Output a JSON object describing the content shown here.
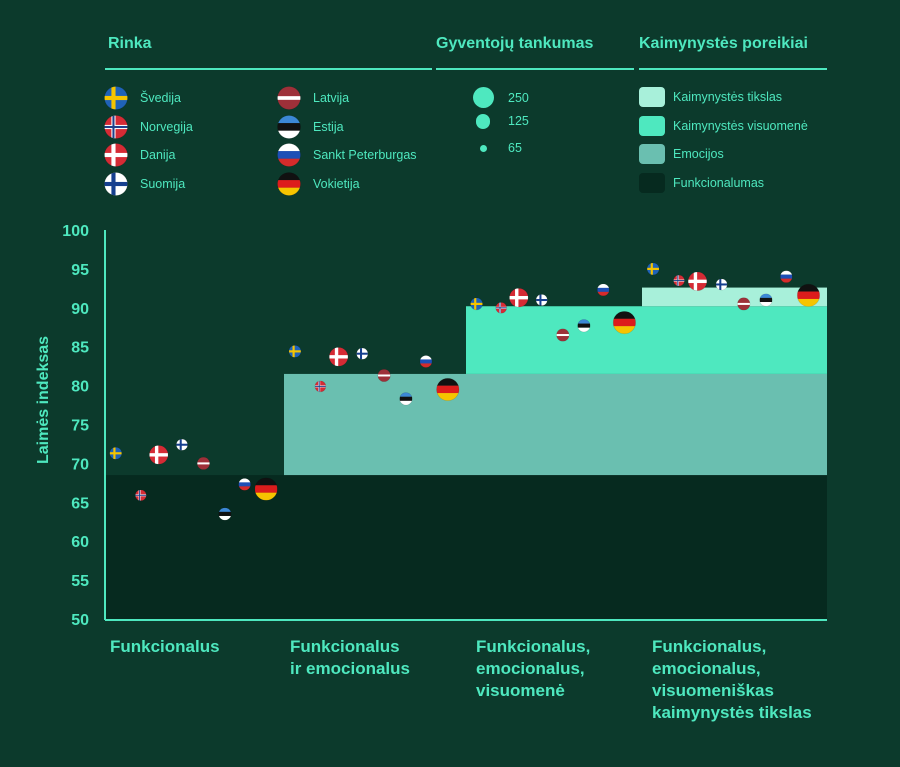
{
  "legend": {
    "market_title": "Rinka",
    "density_title": "Gyventojų tankumas",
    "needs_title": "Kaimynystės poreikiai",
    "markets": [
      {
        "key": "SE",
        "label": "Švedija"
      },
      {
        "key": "NO",
        "label": "Norvegija"
      },
      {
        "key": "DK",
        "label": "Danija"
      },
      {
        "key": "FI",
        "label": "Suomija"
      },
      {
        "key": "LV",
        "label": "Latvija"
      },
      {
        "key": "EE",
        "label": "Estija"
      },
      {
        "key": "RU",
        "label": "Sankt Peterburgas"
      },
      {
        "key": "DE",
        "label": "Vokietija"
      }
    ],
    "density": [
      {
        "value": "250",
        "size": 250
      },
      {
        "value": "125",
        "size": 125
      },
      {
        "value": "65",
        "size": 65
      }
    ],
    "needs": [
      {
        "label": "Kaimynystės tikslas",
        "color": "#a8f0da"
      },
      {
        "label": "Kaimynystės visuomenė",
        "color": "#4ee8bf"
      },
      {
        "label": "Emocijos",
        "color": "#6abfb0"
      },
      {
        "label": "Funkcionalumas",
        "color": "#062a1f"
      }
    ]
  },
  "colors": {
    "accent": "#4ee8bf",
    "background": "#0c3a2c"
  },
  "chart_data": {
    "type": "scatter",
    "ylabel": "Laimės indeksas",
    "xlabel": "",
    "ylim": [
      50,
      100
    ],
    "yticks": [
      50,
      55,
      60,
      65,
      70,
      75,
      80,
      85,
      90,
      95,
      100
    ],
    "categories": [
      "Funkcionalus",
      "Funkcionalus\nir emocionalus",
      "Funkcionalus,\nemocionalus,\nvisuomenė",
      "Funkcionalus,\nemocionalus,\nvisuomeniškas\nkaimynystės tikslas"
    ],
    "levels": [
      {
        "category": 0,
        "functional": 68.5
      },
      {
        "category": 1,
        "functional": 68.5,
        "emotions": 81.5
      },
      {
        "category": 2,
        "functional": 68.5,
        "emotions": 81.5,
        "society": 90.2
      },
      {
        "category": 3,
        "functional": 68.5,
        "emotions": 81.5,
        "society": 90.2,
        "purpose": 92.6
      }
    ],
    "points": [
      {
        "category": 0,
        "market": "SE",
        "happiness": 71.3,
        "density": 25
      },
      {
        "category": 0,
        "market": "NO",
        "happiness": 65.9,
        "density": 15
      },
      {
        "category": 0,
        "market": "DK",
        "happiness": 71.1,
        "density": 135
      },
      {
        "category": 0,
        "market": "FI",
        "happiness": 72.4,
        "density": 18
      },
      {
        "category": 0,
        "market": "LV",
        "happiness": 70.0,
        "density": 30
      },
      {
        "category": 0,
        "market": "EE",
        "happiness": 63.5,
        "density": 30
      },
      {
        "category": 0,
        "market": "RU",
        "happiness": 67.3,
        "density": 25
      },
      {
        "category": 0,
        "market": "DE",
        "happiness": 66.7,
        "density": 235
      },
      {
        "category": 1,
        "market": "SE",
        "happiness": 84.4,
        "density": 25
      },
      {
        "category": 1,
        "market": "NO",
        "happiness": 79.9,
        "density": 15
      },
      {
        "category": 1,
        "market": "DK",
        "happiness": 83.7,
        "density": 135
      },
      {
        "category": 1,
        "market": "FI",
        "happiness": 84.1,
        "density": 18
      },
      {
        "category": 1,
        "market": "LV",
        "happiness": 81.3,
        "density": 30
      },
      {
        "category": 1,
        "market": "EE",
        "happiness": 78.3,
        "density": 30
      },
      {
        "category": 1,
        "market": "RU",
        "happiness": 83.1,
        "density": 25
      },
      {
        "category": 1,
        "market": "DE",
        "happiness": 79.5,
        "density": 235
      },
      {
        "category": 2,
        "market": "SE",
        "happiness": 90.5,
        "density": 25
      },
      {
        "category": 2,
        "market": "NO",
        "happiness": 90.0,
        "density": 15
      },
      {
        "category": 2,
        "market": "DK",
        "happiness": 91.3,
        "density": 135
      },
      {
        "category": 2,
        "market": "FI",
        "happiness": 91.0,
        "density": 18
      },
      {
        "category": 2,
        "market": "LV",
        "happiness": 86.5,
        "density": 30
      },
      {
        "category": 2,
        "market": "EE",
        "happiness": 87.7,
        "density": 30
      },
      {
        "category": 2,
        "market": "RU",
        "happiness": 92.3,
        "density": 25
      },
      {
        "category": 2,
        "market": "DE",
        "happiness": 88.1,
        "density": 235
      },
      {
        "category": 3,
        "market": "SE",
        "happiness": 95.0,
        "density": 25
      },
      {
        "category": 3,
        "market": "NO",
        "happiness": 93.5,
        "density": 15
      },
      {
        "category": 3,
        "market": "DK",
        "happiness": 93.4,
        "density": 135
      },
      {
        "category": 3,
        "market": "FI",
        "happiness": 93.0,
        "density": 18
      },
      {
        "category": 3,
        "market": "LV",
        "happiness": 90.5,
        "density": 30
      },
      {
        "category": 3,
        "market": "EE",
        "happiness": 91.0,
        "density": 30
      },
      {
        "category": 3,
        "market": "RU",
        "happiness": 94.0,
        "density": 25
      },
      {
        "category": 3,
        "market": "DE",
        "happiness": 91.6,
        "density": 235
      }
    ]
  }
}
